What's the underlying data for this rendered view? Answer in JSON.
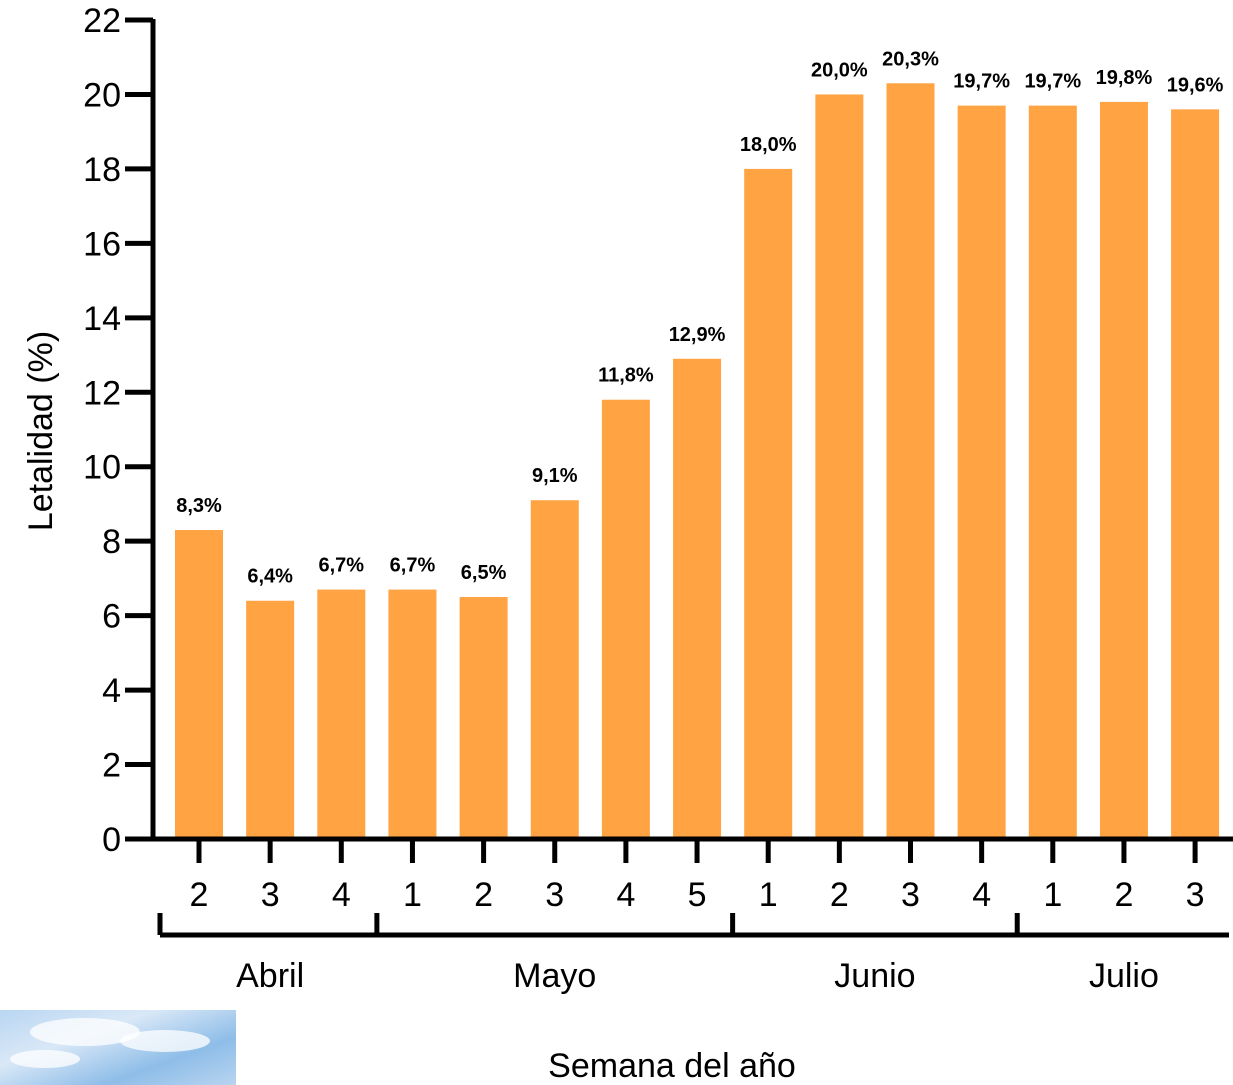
{
  "chart_data": {
    "type": "bar",
    "ylabel": "Letalidad (%)",
    "xlabel": "Semana del año",
    "ylim": [
      0,
      22
    ],
    "yticks": [
      0,
      2,
      4,
      6,
      8,
      10,
      12,
      14,
      16,
      18,
      20,
      22
    ],
    "categories": [
      "2",
      "3",
      "4",
      "1",
      "2",
      "3",
      "4",
      "5",
      "1",
      "2",
      "3",
      "4",
      "1",
      "2",
      "3"
    ],
    "values": [
      8.3,
      6.4,
      6.7,
      6.7,
      6.5,
      9.1,
      11.8,
      12.9,
      18.0,
      20.0,
      20.3,
      19.7,
      19.7,
      19.8,
      19.6
    ],
    "data_labels": [
      "8,3%",
      "6,4%",
      "6,7%",
      "6,7%",
      "6,5%",
      "9,1%",
      "11,8%",
      "12,9%",
      "18,0%",
      "20,0%",
      "20,3%",
      "19,7%",
      "19,7%",
      "19,8%",
      "19,6%"
    ],
    "groups": [
      {
        "label": "Abril",
        "count": 3
      },
      {
        "label": "Mayo",
        "count": 5
      },
      {
        "label": "Junio",
        "count": 4
      },
      {
        "label": "Julio",
        "count": 3
      }
    ],
    "bar_color": "#FFA343",
    "grid": false
  }
}
